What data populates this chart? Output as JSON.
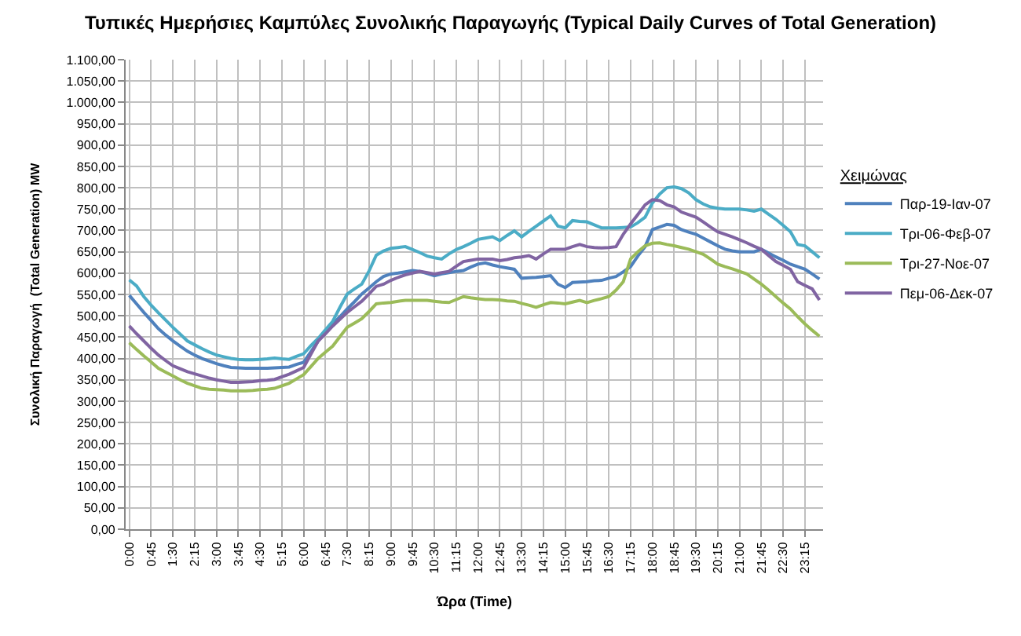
{
  "chart_data": {
    "type": "line",
    "title": "Τυπικές Ημερήσιες Καμπύλες Συνολικής Παραγωγής (Typical Daily Curves of Total Generation)",
    "xlabel": "Ώρα (Time)",
    "ylabel": "Συνολική Παραγωγή  (Total Generation) MW",
    "legend_title": "Χειμώνας",
    "categories": [
      "0:00",
      null,
      null,
      "0:45",
      null,
      null,
      "1:30",
      null,
      null,
      "2:15",
      null,
      null,
      "3:00",
      null,
      null,
      "3:45",
      null,
      null,
      "4:30",
      null,
      null,
      "5:15",
      null,
      null,
      "6:00",
      null,
      null,
      "6:45",
      null,
      null,
      "7:30",
      null,
      null,
      "8:15",
      null,
      null,
      "9:00",
      null,
      null,
      "9:45",
      null,
      null,
      "10:30",
      null,
      null,
      "11:15",
      null,
      null,
      "12:00",
      null,
      null,
      "12:45",
      null,
      null,
      "13:30",
      null,
      null,
      "14:15",
      null,
      null,
      "15:00",
      null,
      null,
      "15:45",
      null,
      null,
      "16:30",
      null,
      null,
      "17:15",
      null,
      null,
      "18:00",
      null,
      null,
      "18:45",
      null,
      null,
      "19:30",
      null,
      null,
      "20:15",
      null,
      null,
      "21:00",
      null,
      null,
      "21:45",
      null,
      null,
      "22:30",
      null,
      null,
      "23:15",
      null,
      null
    ],
    "series": [
      {
        "name": "Παρ-19-Ιαν-07",
        "color": "#4f81bd",
        "values": [
          548,
          528,
          508,
          489,
          470,
          455,
          441,
          429,
          417,
          408,
          400,
          394,
          388,
          383,
          379,
          378,
          377,
          377,
          377,
          377,
          378,
          379,
          380,
          386,
          391,
          416,
          441,
          461,
          481,
          498,
          516,
          533,
          551,
          565,
          580,
          592,
          598,
          600,
          603,
          606,
          604,
          599,
          594,
          598,
          601,
          604,
          606,
          614,
          621,
          624,
          619,
          615,
          612,
          609,
          588,
          589,
          590,
          592,
          594,
          574,
          566,
          578,
          579,
          580,
          582,
          583,
          588,
          592,
          603,
          615,
          640,
          662,
          702,
          708,
          714,
          712,
          702,
          696,
          691,
          682,
          673,
          664,
          656,
          652,
          650,
          650,
          650,
          656,
          647,
          638,
          630,
          621,
          615,
          609,
          598,
          586
        ]
      },
      {
        "name": "Τρι-06-Φεβ-07",
        "color": "#4bacc6",
        "values": [
          584,
          570,
          545,
          525,
          507,
          490,
          473,
          457,
          441,
          432,
          423,
          415,
          408,
          404,
          400,
          398,
          397,
          397,
          398,
          399,
          401,
          399,
          398,
          405,
          411,
          430,
          447,
          467,
          487,
          520,
          551,
          563,
          574,
          605,
          642,
          652,
          658,
          660,
          662,
          655,
          648,
          640,
          636,
          633,
          645,
          655,
          662,
          670,
          679,
          682,
          685,
          676,
          688,
          699,
          685,
          698,
          710,
          722,
          734,
          710,
          706,
          723,
          721,
          720,
          713,
          706,
          706,
          706,
          707,
          708,
          718,
          731,
          764,
          785,
          800,
          802,
          798,
          788,
          772,
          762,
          755,
          752,
          750,
          750,
          750,
          748,
          745,
          750,
          738,
          726,
          712,
          697,
          667,
          664,
          650,
          636
        ]
      },
      {
        "name": "Τρι-27-Νοε-07",
        "color": "#9bbb59",
        "values": [
          437,
          421,
          406,
          392,
          377,
          368,
          359,
          350,
          342,
          336,
          330,
          328,
          327,
          326,
          324,
          324,
          324,
          325,
          327,
          328,
          330,
          336,
          342,
          352,
          362,
          381,
          400,
          415,
          429,
          451,
          473,
          483,
          493,
          510,
          528,
          530,
          531,
          534,
          536,
          536,
          536,
          536,
          534,
          532,
          531,
          538,
          545,
          542,
          540,
          538,
          538,
          537,
          535,
          534,
          529,
          525,
          520,
          526,
          531,
          530,
          528,
          532,
          536,
          531,
          536,
          540,
          545,
          560,
          580,
          633,
          650,
          664,
          670,
          671,
          667,
          664,
          660,
          656,
          650,
          644,
          633,
          621,
          615,
          610,
          604,
          598,
          586,
          574,
          560,
          545,
          530,
          516,
          498,
          481,
          466,
          452
        ]
      },
      {
        "name": "Πεμ-06-Δεκ-07",
        "color": "#8064a2",
        "values": [
          476,
          458,
          441,
          424,
          408,
          395,
          383,
          376,
          369,
          364,
          359,
          354,
          350,
          347,
          344,
          344,
          345,
          346,
          348,
          349,
          351,
          357,
          363,
          371,
          379,
          410,
          441,
          458,
          476,
          492,
          508,
          521,
          534,
          551,
          569,
          574,
          583,
          590,
          596,
          600,
          604,
          601,
          598,
          601,
          604,
          616,
          627,
          630,
          633,
          633,
          633,
          629,
          632,
          636,
          638,
          641,
          633,
          645,
          656,
          656,
          656,
          662,
          667,
          662,
          660,
          659,
          660,
          662,
          691,
          715,
          737,
          760,
          772,
          770,
          760,
          755,
          743,
          737,
          731,
          720,
          708,
          697,
          691,
          685,
          678,
          671,
          663,
          656,
          641,
          627,
          618,
          609,
          580,
          571,
          563,
          537
        ]
      }
    ],
    "ylim": [
      0,
      1100
    ],
    "yticks": [
      {
        "value": 0,
        "label": "0,00"
      },
      {
        "value": 50,
        "label": "50,00"
      },
      {
        "value": 100,
        "label": "100,00"
      },
      {
        "value": 150,
        "label": "150,00"
      },
      {
        "value": 200,
        "label": "200,00"
      },
      {
        "value": 250,
        "label": "250,00"
      },
      {
        "value": 300,
        "label": "300,00"
      },
      {
        "value": 350,
        "label": "350,00"
      },
      {
        "value": 400,
        "label": "400,00"
      },
      {
        "value": 450,
        "label": "450,00"
      },
      {
        "value": 500,
        "label": "500,00"
      },
      {
        "value": 550,
        "label": "550,00"
      },
      {
        "value": 600,
        "label": "600,00"
      },
      {
        "value": 650,
        "label": "650,00"
      },
      {
        "value": 700,
        "label": "700,00"
      },
      {
        "value": 750,
        "label": "750,00"
      },
      {
        "value": 800,
        "label": "800,00"
      },
      {
        "value": 850,
        "label": "850,00"
      },
      {
        "value": 900,
        "label": "900,00"
      },
      {
        "value": 950,
        "label": "950,00"
      },
      {
        "value": 1000,
        "label": "1.000,00"
      },
      {
        "value": 1050,
        "label": "1.050,00"
      },
      {
        "value": 1100,
        "label": "1.100,00"
      }
    ],
    "grid": true,
    "legend": "right",
    "marker": "none",
    "line_style": "solid"
  }
}
